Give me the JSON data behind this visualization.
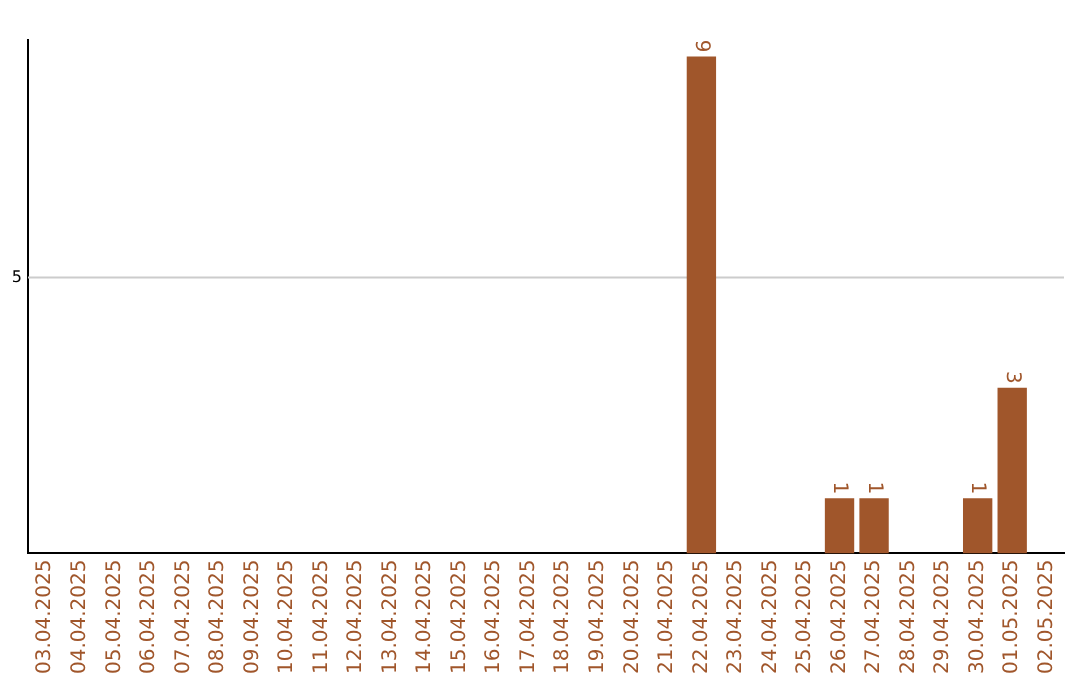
{
  "chart_data": {
    "type": "bar",
    "categories": [
      "03.04.2025",
      "04.04.2025",
      "05.04.2025",
      "06.04.2025",
      "07.04.2025",
      "08.04.2025",
      "09.04.2025",
      "10.04.2025",
      "11.04.2025",
      "12.04.2025",
      "13.04.2025",
      "14.04.2025",
      "15.04.2025",
      "16.04.2025",
      "17.04.2025",
      "18.04.2025",
      "19.04.2025",
      "20.04.2025",
      "21.04.2025",
      "22.04.2025",
      "23.04.2025",
      "24.04.2025",
      "25.04.2025",
      "26.04.2025",
      "27.04.2025",
      "28.04.2025",
      "29.04.2025",
      "30.04.2025",
      "01.05.2025",
      "02.05.2025"
    ],
    "values": [
      null,
      null,
      null,
      null,
      null,
      null,
      null,
      null,
      null,
      null,
      null,
      null,
      null,
      null,
      null,
      null,
      null,
      null,
      null,
      9,
      null,
      null,
      null,
      1,
      1,
      null,
      null,
      1,
      3,
      null
    ],
    "data_labels": true,
    "color": "#a0562b",
    "ylim": [
      0,
      9.3
    ],
    "ref_lines": [
      {
        "axis": "y",
        "value": 5,
        "label": "5",
        "color": "#cccccc"
      }
    ]
  }
}
